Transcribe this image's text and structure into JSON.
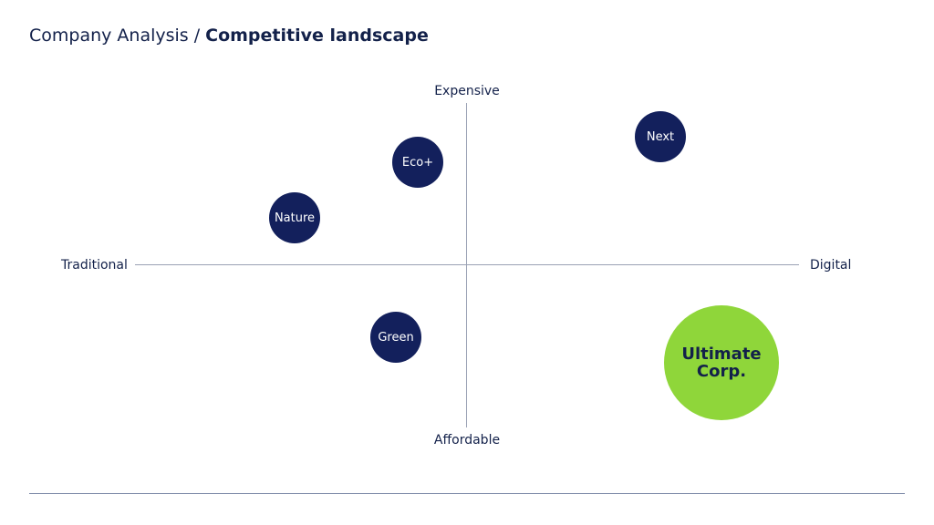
{
  "header": {
    "section": "Company Analysis",
    "separator": "/",
    "title": "Competitive landscape"
  },
  "matrix": {
    "axis_top": "Expensive",
    "axis_bottom": "Affordable",
    "axis_left": "Traditional",
    "axis_right": "Digital",
    "competitors": {
      "next": "Next",
      "eco": "Eco+",
      "nature": "Nature",
      "green": "Green"
    },
    "highlight": {
      "line1": "Ultimate",
      "line2": "Corp."
    }
  },
  "colors": {
    "competitor": "#13205c",
    "highlight": "#8fd63a",
    "text": "#13214a",
    "axis": "#9aa1b4"
  }
}
